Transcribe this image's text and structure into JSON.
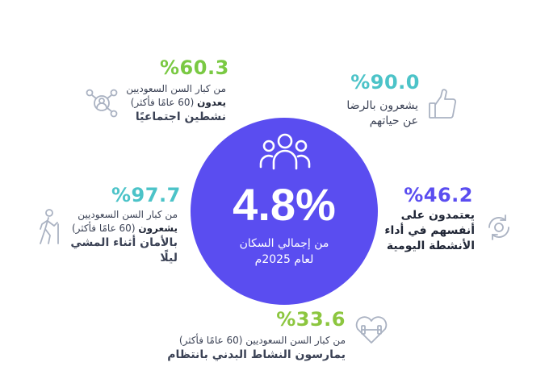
{
  "center": {
    "value": "4.8%",
    "line1": "من إجمالي السكان",
    "line2": "لعام 2025م"
  },
  "stats": {
    "social": {
      "pct": "%60.3",
      "line1": "من كبار السن السعوديين",
      "line2_normal": "(60 عامًا فأكثر)",
      "line2_bold": "يعدون",
      "line3": "نشطين اجتماعيًا",
      "color": "#7ac943",
      "icon": "people-network-icon"
    },
    "satisfied": {
      "pct": "%90.0",
      "line1": "يشعرون بالرضا",
      "line2": "عن حياتهم",
      "color": "#4cc3c8",
      "icon": "thumbs-up-icon"
    },
    "walking": {
      "pct": "%97.7",
      "line1": "من كبار السن السعوديين",
      "line2_normal": "(60 عامًا فأكثر)",
      "line2_bold": "يشعرون",
      "line3": "بالأمان أثناء المشي ليلًا",
      "color": "#4cc3c8",
      "icon": "walking-person-icon"
    },
    "independent": {
      "pct": "%46.2",
      "line1": "يعتمدون على",
      "line2": "أنفسهم في أداء",
      "line3": "الأنشطة اليومية",
      "color": "#5a4df0",
      "icon": "refresh-cycle-icon"
    },
    "active": {
      "pct": "%33.6",
      "line1": "من كبار السن السعوديين (60 عامًا فأكثر)",
      "line2": "يمارسون النشاط البدني بانتظام",
      "color": "#8cc63f",
      "icon": "heart-dumbbell-icon"
    }
  },
  "colors": {
    "circle": "#5a4df0",
    "icon_gray": "#aab2c2"
  }
}
